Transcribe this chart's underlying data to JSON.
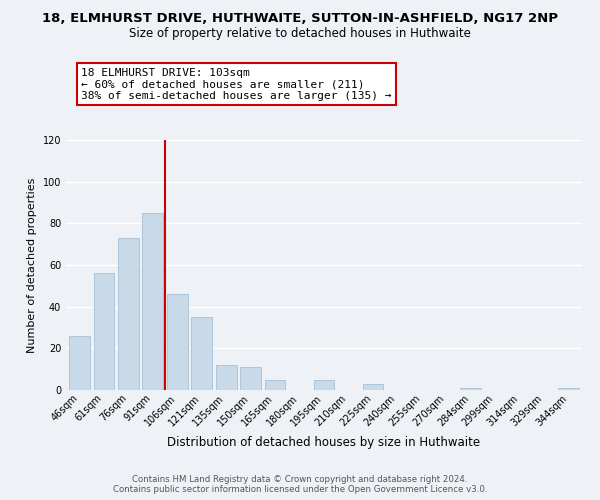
{
  "title": "18, ELMHURST DRIVE, HUTHWAITE, SUTTON-IN-ASHFIELD, NG17 2NP",
  "subtitle": "Size of property relative to detached houses in Huthwaite",
  "xlabel": "Distribution of detached houses by size in Huthwaite",
  "ylabel": "Number of detached properties",
  "bar_color": "#c8daea",
  "bar_edge_color": "#a8c0d4",
  "background_color": "#eef2f7",
  "grid_color": "white",
  "annotation_box_color": "white",
  "annotation_box_edge": "#cc0000",
  "vline_color": "#cc0000",
  "categories": [
    "46sqm",
    "61sqm",
    "76sqm",
    "91sqm",
    "106sqm",
    "121sqm",
    "135sqm",
    "150sqm",
    "165sqm",
    "180sqm",
    "195sqm",
    "210sqm",
    "225sqm",
    "240sqm",
    "255sqm",
    "270sqm",
    "284sqm",
    "299sqm",
    "314sqm",
    "329sqm",
    "344sqm"
  ],
  "values": [
    26,
    56,
    73,
    85,
    46,
    35,
    12,
    11,
    5,
    0,
    5,
    0,
    3,
    0,
    0,
    0,
    1,
    0,
    0,
    0,
    1
  ],
  "annotation_title": "18 ELMHURST DRIVE: 103sqm",
  "annotation_line1": "← 60% of detached houses are smaller (211)",
  "annotation_line2": "38% of semi-detached houses are larger (135) →",
  "ylim": [
    0,
    120
  ],
  "yticks": [
    0,
    20,
    40,
    60,
    80,
    100,
    120
  ],
  "footer1": "Contains HM Land Registry data © Crown copyright and database right 2024.",
  "footer2": "Contains public sector information licensed under the Open Government Licence v3.0.",
  "title_fontsize": 9.5,
  "subtitle_fontsize": 8.5,
  "ylabel_fontsize": 8,
  "xlabel_fontsize": 8.5,
  "tick_fontsize": 7,
  "annotation_fontsize": 8,
  "footer_fontsize": 6.2
}
